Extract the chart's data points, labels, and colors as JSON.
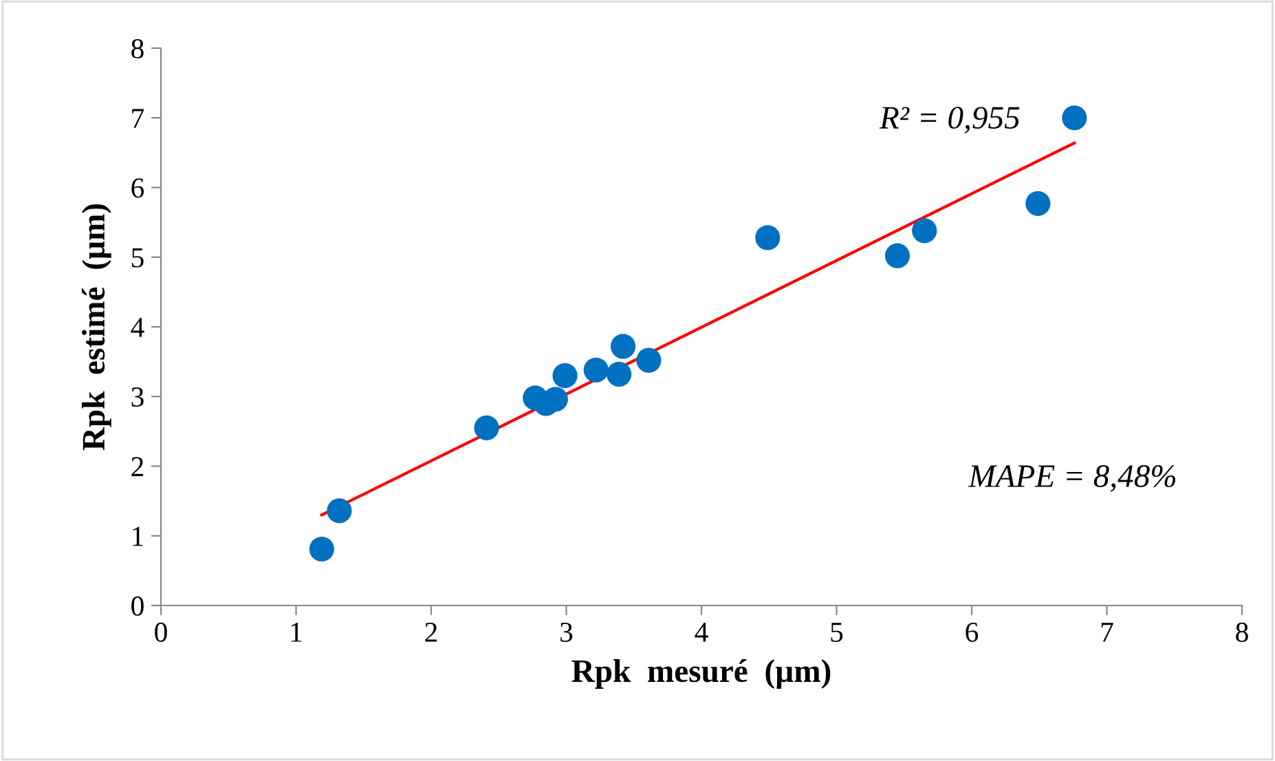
{
  "chart_data": {
    "type": "scatter",
    "xlabel": "Rpk  mesuré  (µm)",
    "ylabel": "Rpk  estimé  (µm)",
    "xlim": [
      0,
      8
    ],
    "ylim": [
      0,
      8
    ],
    "xticks": [
      0,
      1,
      2,
      3,
      4,
      5,
      6,
      7,
      8
    ],
    "yticks": [
      0,
      1,
      2,
      3,
      4,
      5,
      6,
      7,
      8
    ],
    "grid": false,
    "series": [
      {
        "marker": "circle",
        "color": "#0070c0",
        "x": [
          1.19,
          1.32,
          2.41,
          2.77,
          2.85,
          2.92,
          2.99,
          3.22,
          3.39,
          3.42,
          3.61,
          4.49,
          5.45,
          5.65,
          6.49,
          6.76
        ],
        "values": [
          0.81,
          1.36,
          2.55,
          2.98,
          2.9,
          2.96,
          3.3,
          3.38,
          3.32,
          3.72,
          3.52,
          5.28,
          5.02,
          5.38,
          5.77,
          7.0
        ]
      },
      {
        "type": "line",
        "color": "#ff0000",
        "x": [
          1.19,
          6.76
        ],
        "values": [
          1.3,
          6.64
        ]
      }
    ],
    "annotations": [
      "R² = 0,955",
      "MAPE = 8,48%"
    ]
  }
}
